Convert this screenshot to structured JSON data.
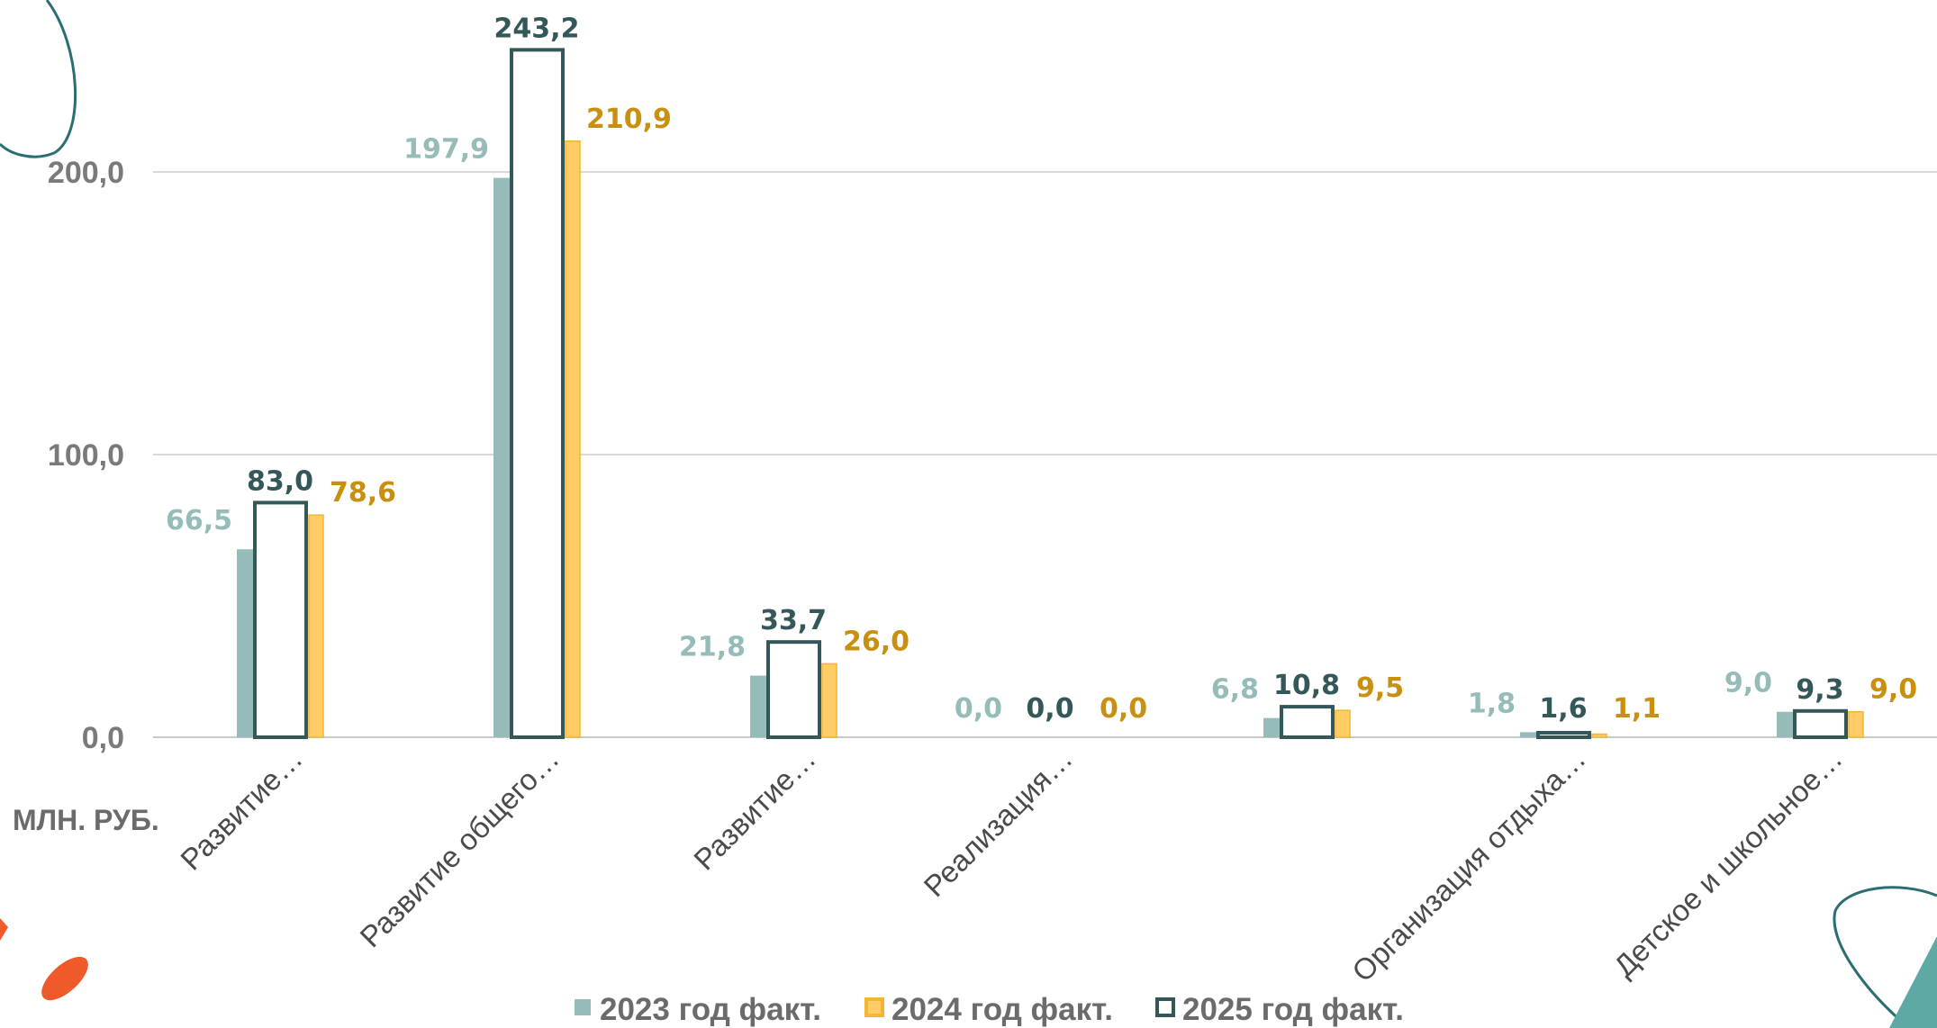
{
  "chart_data": {
    "type": "bar",
    "ylabel": "МЛН. РУБ.",
    "ylim": [
      0,
      250
    ],
    "y_ticks": [
      0,
      100,
      200
    ],
    "y_tick_labels": [
      "0,0",
      "100,0",
      "200,0"
    ],
    "grid": true,
    "legend_position": "bottom-center",
    "categories": [
      "Развитие…",
      "Развитие общего…",
      "Развитие…",
      "Реализация…",
      "",
      "Организация отдыха…",
      "Детское и школьное…"
    ],
    "series": [
      {
        "name": "2023 год факт.",
        "values": [
          66.5,
          197.9,
          21.8,
          0.0,
          6.8,
          1.8,
          9.0
        ],
        "labels": [
          "66,5",
          "197,9",
          "21,8",
          "0,0",
          "6,8",
          "1,8",
          "9,0"
        ],
        "color": "#95bcb9",
        "style": "filled"
      },
      {
        "name": "2025 год факт.",
        "values": [
          83.0,
          243.2,
          33.7,
          0.0,
          10.8,
          1.6,
          9.3
        ],
        "labels": [
          "83,0",
          "243,2",
          "33,7",
          "0,0",
          "10,8",
          "1,6",
          "9,3"
        ],
        "color": "#34575a",
        "style": "outline"
      },
      {
        "name": "2024 год факт.",
        "values": [
          78.6,
          210.9,
          26.0,
          0.0,
          9.5,
          1.1,
          9.0
        ],
        "labels": [
          "78,6",
          "210,9",
          "26,0",
          "0,0",
          "9,5",
          "1,1",
          "9,0"
        ],
        "color": "#ffcc66",
        "label_color": "#c8900e",
        "style": "filled"
      }
    ],
    "legend_order": [
      "2023 год факт.",
      "2024 год факт.",
      "2025 год факт."
    ]
  },
  "decor": {
    "teal_line": "#2a6e73",
    "teal_fill": "#5fa9a4",
    "orange": "#f05a2a"
  }
}
